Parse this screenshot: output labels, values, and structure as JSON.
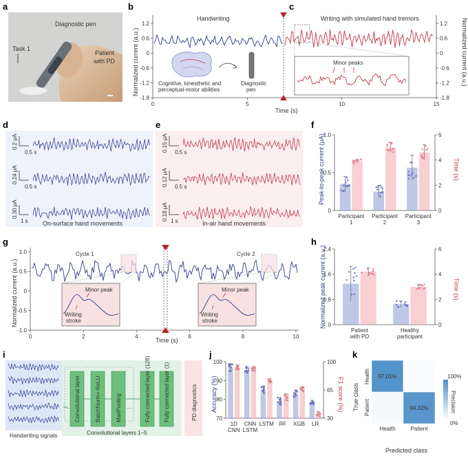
{
  "labels": [
    "a",
    "b",
    "c",
    "d",
    "e",
    "f",
    "g",
    "h",
    "i",
    "j",
    "k"
  ],
  "panel_a": {
    "diagnostic_pen": "Diagnostic pen",
    "task": "Task 1",
    "patient_line1": "Patient",
    "patient_line2": "with PD"
  },
  "panel_b": {
    "title": "Handwriting",
    "brain_caption_1": "Cognitive, kinesthetic and",
    "brain_caption_2": "perceptual-motor abilities",
    "pen_caption_1": "Diagnostic",
    "pen_caption_2": "pen",
    "xlabel": "Time (s)",
    "ylabel": "Normalized current (a.u.)",
    "yticks": [
      "1.2",
      "0.6",
      "0",
      "-0.6",
      "-1.2",
      "-1.8"
    ],
    "xticks": [
      "0",
      "5",
      "10",
      "15"
    ]
  },
  "panel_c": {
    "title": "Writing with simulated hand tremors",
    "ylabel": "Normalized current (a.u.)",
    "yticks": [
      "1.2",
      "0.6",
      "0",
      "-0.6",
      "-1.2",
      "-1.8"
    ],
    "inset_label": "Minor peaks"
  },
  "panel_d": {
    "scales": [
      "0.2 μA",
      "0.24 μA",
      "0.30 μA"
    ],
    "time_scale_1": "0.5 s",
    "time_scale_2": "0.5 s",
    "time_scale_3": "1 s",
    "caption": "On-surface hand movements"
  },
  "panel_e": {
    "scales": [
      "0.15 μA",
      "0.12 μA",
      "0.18 μA"
    ],
    "time_scale_1": "0.5 s",
    "time_scale_2": "0.5 s",
    "time_scale_3": "1 s",
    "caption": "In-air hand movements"
  },
  "panel_f": {
    "ylabel_left": "Peak-to-peak current (μA)",
    "ylabel_right": "Time (s)",
    "yticks_left": [
      "0",
      "0.5",
      "1.0"
    ],
    "yticks_right": [
      "0",
      "2",
      "4",
      "6"
    ],
    "cat_line1": [
      "Participant",
      "Participant",
      "Participant"
    ],
    "cat_line2": [
      "1",
      "2",
      "3"
    ]
  },
  "panel_g": {
    "ylabel": "Normalized current (a.u.)",
    "xlabel": "Time (s)",
    "yticks": [
      "1.0",
      "0.5",
      "0",
      "-0.5",
      "-1.0"
    ],
    "xticks": [
      "0",
      "2",
      "4",
      "6",
      "8",
      "10"
    ],
    "cycle1": "Cycle 1",
    "cycle2": "Cycle 2",
    "minor_peak": "Minor peak",
    "writing_1": "Writing",
    "writing_2": "stroke"
  },
  "panel_h": {
    "ylabel_left": "Normalized peak current (a.u.)",
    "ylabel_right": "Time (s)",
    "yticks_left": [
      "0",
      "0.8",
      "1.6",
      "2.4"
    ],
    "yticks_right": [
      "0",
      "2",
      "4",
      "6"
    ],
    "cat_line1": [
      "Patient",
      "Healthy"
    ],
    "cat_line2": [
      "with PD",
      "participant"
    ]
  },
  "panel_i": {
    "signals": "Handwriting signals",
    "conv_group": "Convolutional layers 1–5",
    "blocks": [
      "Convolutional layer",
      "BatchNorm+ ReLU",
      "MaxPooling",
      "Fully connected layer (128)",
      "Fully connected layer (1)"
    ],
    "output": "PD diagnostics"
  },
  "panel_j": {
    "ylabel_left": "Accuracy (%)",
    "ylabel_right": "F1 score (%)",
    "yticks_left": [
      "70",
      "80",
      "90",
      "100"
    ],
    "yticks_right": [
      "30",
      "65",
      "100"
    ],
    "cat_line1": [
      "1D",
      "CNN",
      "LSTM",
      "RF",
      "XGB",
      "LR"
    ],
    "cat_line2": [
      "CNN",
      "LSTM",
      "",
      "",
      "",
      ""
    ]
  },
  "panel_k": {
    "ylabel": "True class",
    "xlabel": "Predicted class",
    "row_labels": [
      "Health",
      "Patient"
    ],
    "col_labels": [
      "Health",
      "Patient"
    ],
    "colorbar_label": "Precision",
    "colorbar_max": "100%",
    "colorbar_min": "0%"
  },
  "chart_data": [
    {
      "type": "bar",
      "panel": "f",
      "categories": [
        "Participant 1",
        "Participant 2",
        "Participant 3"
      ],
      "series": [
        {
          "name": "Peak-to-peak current (μA)",
          "values": [
            0.42,
            0.3,
            0.68
          ],
          "errors": [
            0.12,
            0.1,
            0.2
          ],
          "color": "#8d9bd6"
        },
        {
          "name": "Time (s)",
          "values": [
            3.9,
            5.0,
            4.6
          ],
          "errors": [
            0.15,
            0.4,
            0.6
          ],
          "color": "#f3a7ad"
        }
      ],
      "ylim_left": [
        0,
        1.2
      ],
      "ylim_right": [
        0,
        6
      ]
    },
    {
      "type": "bar",
      "panel": "h",
      "categories": [
        "Patient with PD",
        "Healthy participant"
      ],
      "series": [
        {
          "name": "Normalized peak current (a.u.)",
          "values": [
            1.3,
            0.65
          ],
          "errors": [
            0.55,
            0.1
          ],
          "color": "#8d9bd6"
        },
        {
          "name": "Time (s)",
          "values": [
            4.2,
            3.0
          ],
          "errors": [
            0.3,
            0.2
          ],
          "color": "#f3a7ad"
        }
      ],
      "ylim_left": [
        0,
        2.4
      ],
      "ylim_right": [
        0,
        6
      ]
    },
    {
      "type": "bar",
      "panel": "j",
      "categories": [
        "1D CNN",
        "CNN LSTM",
        "LSTM",
        "RF",
        "XGB",
        "LR"
      ],
      "series": [
        {
          "name": "Accuracy (%)",
          "values": [
            97,
            95.5,
            85,
            79,
            83,
            78.5
          ],
          "errors": [
            2,
            2,
            2,
            2,
            2,
            1
          ],
          "color": "#8d9bd6"
        },
        {
          "name": "F1 score (%)",
          "values": [
            93,
            91,
            76,
            56,
            66,
            35
          ],
          "errors": [
            3,
            3,
            3,
            4,
            3,
            3
          ],
          "color": "#f3a7ad"
        }
      ],
      "ylim_left": [
        70,
        100
      ],
      "ylim_right": [
        30,
        100
      ]
    },
    {
      "type": "heatmap",
      "panel": "k",
      "rows": [
        "Health",
        "Patient"
      ],
      "cols": [
        "Health",
        "Patient"
      ],
      "values": [
        [
          97.01,
          2.99
        ],
        [
          5.68,
          94.32
        ]
      ],
      "labels": [
        [
          "97.01%",
          ""
        ],
        [
          "",
          "94.32%"
        ]
      ]
    }
  ]
}
